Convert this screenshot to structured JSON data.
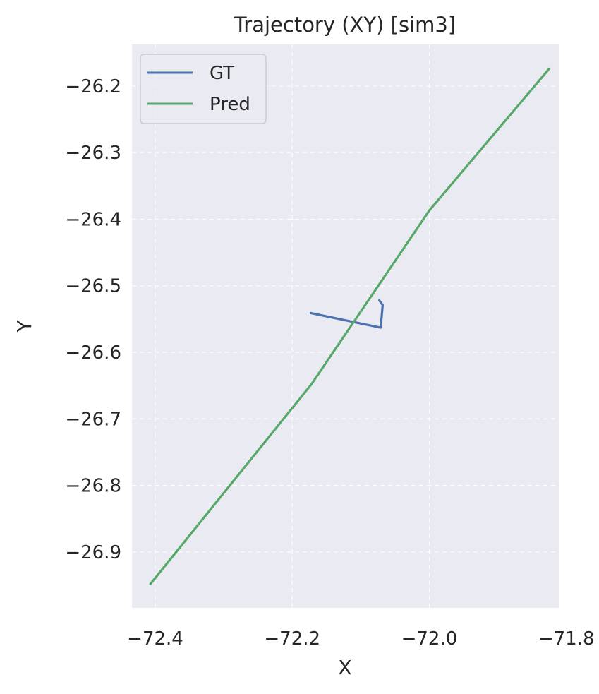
{
  "chart_data": {
    "type": "line",
    "title": "Trajectory (XY) [sim3]",
    "xlabel": "X",
    "ylabel": "Y",
    "xlim": [
      -72.434,
      -71.811
    ],
    "ylim": [
      -26.984,
      -26.1375
    ],
    "xticks": [
      -72.4,
      -72.2,
      -72.0,
      -71.8
    ],
    "xtick_labels": [
      "−72.4",
      "−72.2",
      "−72.0",
      "−71.8"
    ],
    "yticks": [
      -26.2,
      -26.3,
      -26.4,
      -26.5,
      -26.6,
      -26.7,
      -26.8,
      -26.9
    ],
    "ytick_labels": [
      "−26.2",
      "−26.3",
      "−26.4",
      "−26.5",
      "−26.6",
      "−26.7",
      "−26.8",
      "−26.9"
    ],
    "grid": true,
    "legend_position": "top-left",
    "series": [
      {
        "name": "GT",
        "color": "#4c72b0",
        "x": [
          -72.173,
          -72.071,
          -72.068,
          -72.073
        ],
        "y": [
          -26.541,
          -26.563,
          -26.529,
          -26.522
        ]
      },
      {
        "name": "Pred",
        "color": "#55a868",
        "x": [
          -72.407,
          -72.172,
          -72.0,
          -71.825
        ],
        "y": [
          -26.948,
          -26.648,
          -26.387,
          -26.174
        ]
      }
    ]
  }
}
